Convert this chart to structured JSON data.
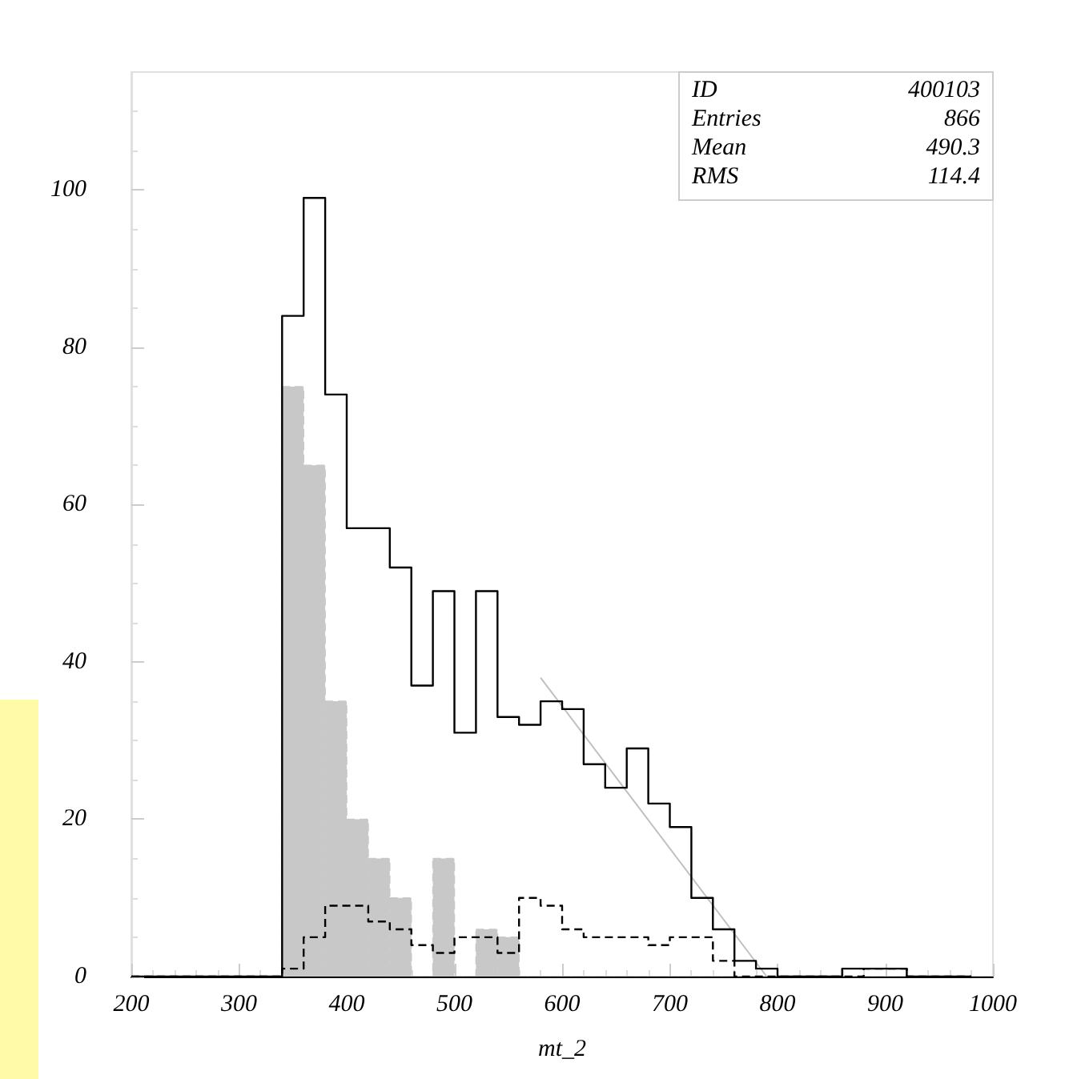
{
  "chart_data": {
    "type": "histogram",
    "xlabel": "mt_2",
    "bins": [
      200,
      220,
      240,
      260,
      280,
      300,
      320,
      340,
      360,
      380,
      400,
      420,
      440,
      460,
      480,
      500,
      520,
      540,
      560,
      580,
      600,
      620,
      640,
      660,
      680,
      700,
      720,
      740,
      760,
      780,
      800,
      820,
      840,
      860,
      880,
      900,
      920,
      940,
      960,
      980,
      1000
    ],
    "series": [
      {
        "type": "histogram",
        "color": "#c8c8c8",
        "line_style": "dashed",
        "values": [
          0,
          0,
          0,
          0,
          0,
          0,
          0,
          75,
          65,
          35,
          20,
          15,
          10,
          0,
          15,
          0,
          6,
          5,
          0,
          0,
          0,
          0,
          0,
          0,
          0,
          0,
          0,
          0,
          0,
          0,
          0,
          0,
          0,
          0,
          0,
          0,
          0,
          0,
          0,
          0
        ]
      },
      {
        "type": "step",
        "color": "#000000",
        "line_style": "dashed",
        "x": [
          200,
          220,
          240,
          260,
          280,
          300,
          320,
          340,
          360,
          380,
          400,
          420,
          440,
          460,
          480,
          500,
          520,
          540,
          560,
          580,
          600,
          620,
          640,
          660,
          680,
          700,
          720,
          740,
          760,
          780,
          800,
          820,
          840,
          860,
          880,
          900,
          920,
          940,
          960,
          980
        ],
        "values": [
          0,
          0,
          0,
          0,
          0,
          0,
          0,
          1,
          5,
          9,
          9,
          7,
          6,
          4,
          3,
          5,
          5,
          3,
          10,
          9,
          6,
          5,
          5,
          5,
          4,
          5,
          5,
          2,
          0,
          0,
          0,
          0,
          0,
          0,
          1,
          1,
          0,
          0,
          0,
          0
        ]
      },
      {
        "type": "step",
        "color": "#000000",
        "line_style": "solid",
        "x": [
          200,
          220,
          240,
          260,
          280,
          300,
          320,
          340,
          360,
          380,
          400,
          420,
          440,
          460,
          480,
          500,
          520,
          540,
          560,
          580,
          600,
          620,
          640,
          660,
          680,
          700,
          720,
          740,
          760,
          780,
          800,
          820,
          840,
          860,
          880,
          900,
          920,
          940,
          960,
          980
        ],
        "values": [
          0,
          0,
          0,
          0,
          0,
          0,
          0,
          84,
          99,
          74,
          57,
          57,
          52,
          37,
          49,
          31,
          49,
          33,
          32,
          35,
          34,
          27,
          24,
          29,
          22,
          19,
          10,
          6,
          2,
          1,
          0,
          0,
          0,
          1,
          1,
          1,
          0,
          0,
          0,
          0
        ]
      },
      {
        "type": "line",
        "color": "#c0c0c0",
        "line_style": "solid",
        "x": [
          580,
          790
        ],
        "values": [
          38,
          0
        ]
      }
    ],
    "xlim": [
      200,
      1000
    ],
    "xticks": [
      200,
      300,
      400,
      500,
      600,
      700,
      800,
      900,
      1000
    ],
    "ylim": [
      0,
      115
    ],
    "yticks": [
      0,
      20,
      40,
      60,
      80,
      100
    ],
    "annotations": [
      "ID 400103",
      "Entries 866",
      "Mean 490.3",
      "RMS 114.4"
    ],
    "grid": false
  }
}
